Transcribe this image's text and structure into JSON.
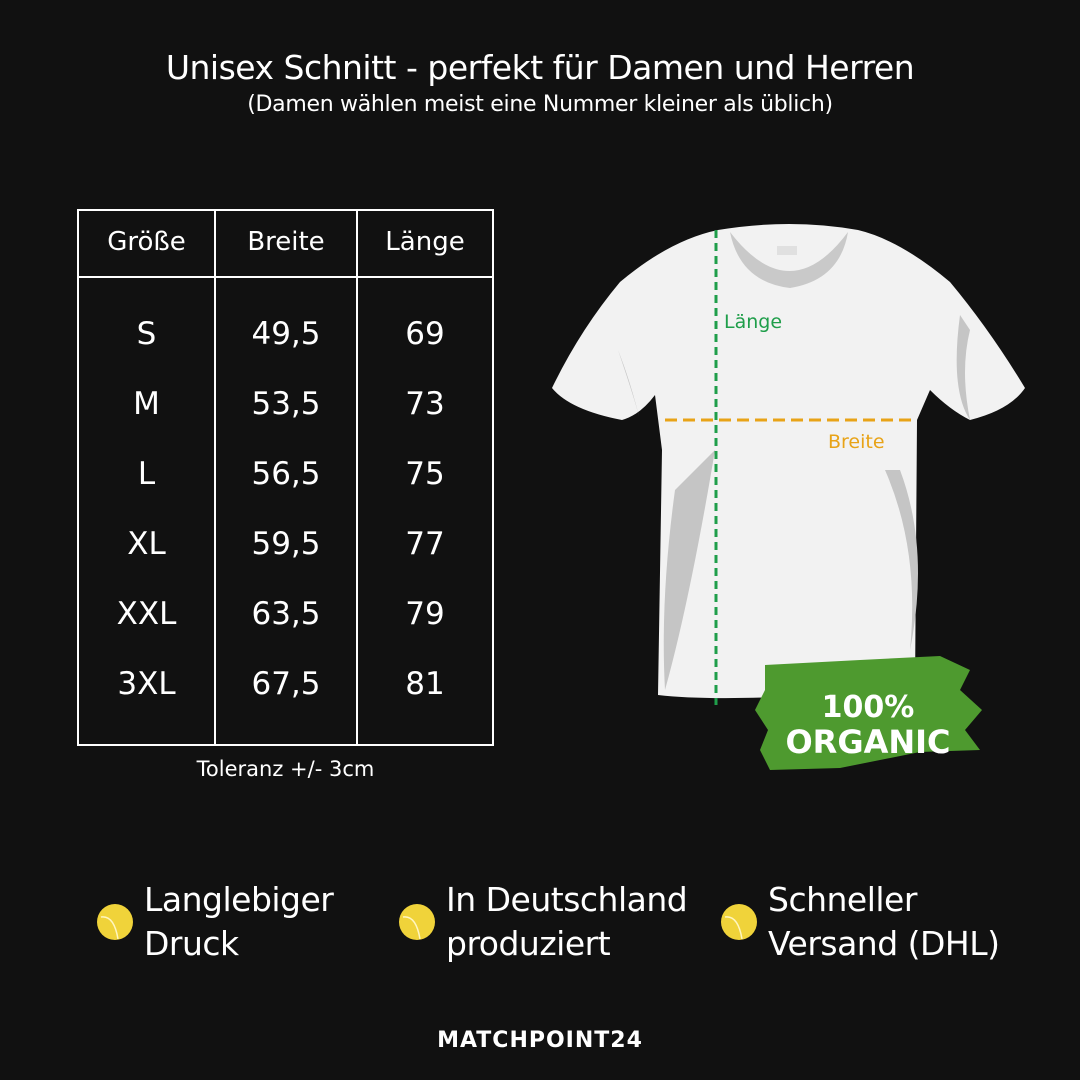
{
  "header": {
    "title": "Unisex Schnitt - perfekt für Damen und Herren",
    "subtitle": "(Damen wählen meist eine Nummer kleiner als üblich)"
  },
  "size_table": {
    "columns": [
      "Größe",
      "Breite",
      "Länge"
    ],
    "rows": [
      [
        "S",
        "49,5",
        "69"
      ],
      [
        "M",
        "53,5",
        "73"
      ],
      [
        "L",
        "56,5",
        "75"
      ],
      [
        "XL",
        "59,5",
        "77"
      ],
      [
        "XXL",
        "63,5",
        "79"
      ],
      [
        "3XL",
        "67,5",
        "81"
      ]
    ],
    "tolerance": "Toleranz +/- 3cm"
  },
  "shirt_diagram": {
    "length_label": "Länge",
    "width_label": "Breite",
    "length_color": "#1f9e4a",
    "width_color": "#e8a317",
    "badge_line1": "100%",
    "badge_line2": "ORGANIC",
    "badge_color": "#4e9a2f"
  },
  "features": [
    {
      "icon": "tennis-ball-icon",
      "line1": "Langlebiger",
      "line2": "Druck"
    },
    {
      "icon": "tennis-ball-icon",
      "line1": "In Deutschland",
      "line2": "produziert"
    },
    {
      "icon": "tennis-ball-icon",
      "line1": "Schneller",
      "line2": "Versand (DHL)"
    }
  ],
  "brand": {
    "logo_text": "MATCHPOINT24",
    "accent": "#f0d33a"
  }
}
